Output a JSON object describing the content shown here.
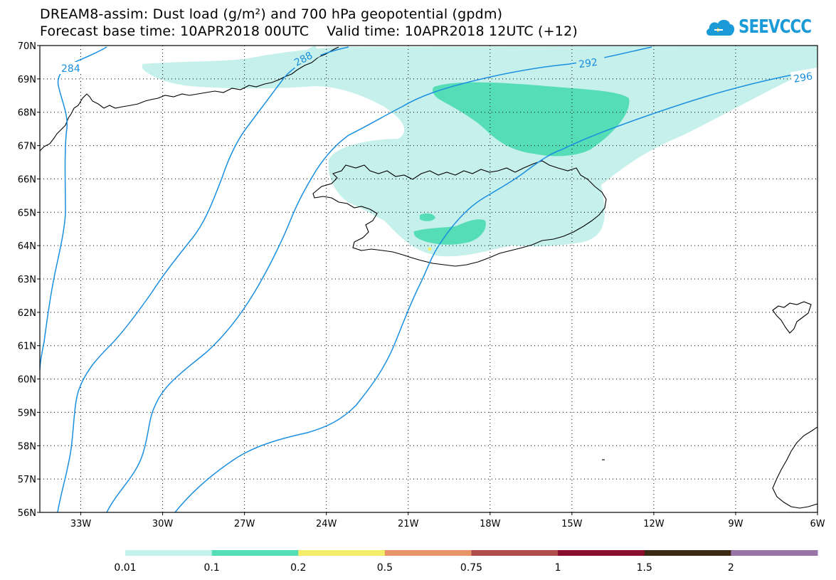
{
  "title": {
    "line1": "DREAM8-assim: Dust load (g/m²) and 700 hPa geopotential (gpdm)",
    "line2": "Forecast base time: 10APR2018 00UTC    Valid time: 10APR2018 12UTC (+12)"
  },
  "logo": {
    "text": "SEEVCCC",
    "icon": "cloud-logo-icon",
    "color": "#1a9ad6"
  },
  "axes": {
    "lat_labels": [
      "70N",
      "69N",
      "68N",
      "67N",
      "66N",
      "65N",
      "64N",
      "63N",
      "62N",
      "61N",
      "60N",
      "59N",
      "58N",
      "57N",
      "56N"
    ],
    "lon_labels": [
      "33W",
      "30W",
      "27W",
      "24W",
      "21W",
      "18W",
      "15W",
      "12W",
      "9W",
      "6W"
    ],
    "lat_range": [
      56,
      70
    ],
    "lon_range": [
      -34.5,
      -6
    ]
  },
  "contours": {
    "color": "#1a8fe0",
    "levels": [
      "284",
      "288",
      "292",
      "296"
    ]
  },
  "dust_fill_colors": {
    "light": "#c6f0eb",
    "medium": "#55ddb5",
    "yellow": "#f3ed6a"
  },
  "colorbar": {
    "labels": [
      "0.01",
      "0.1",
      "0.2",
      "0.5",
      "0.75",
      "1",
      "1.5",
      "2"
    ],
    "colors": [
      "#c6f0eb",
      "#55ddb5",
      "#f3ed6a",
      "#e89466",
      "#b14d4b",
      "#8a0d2e",
      "#3d2a16",
      "#9874a8"
    ]
  }
}
